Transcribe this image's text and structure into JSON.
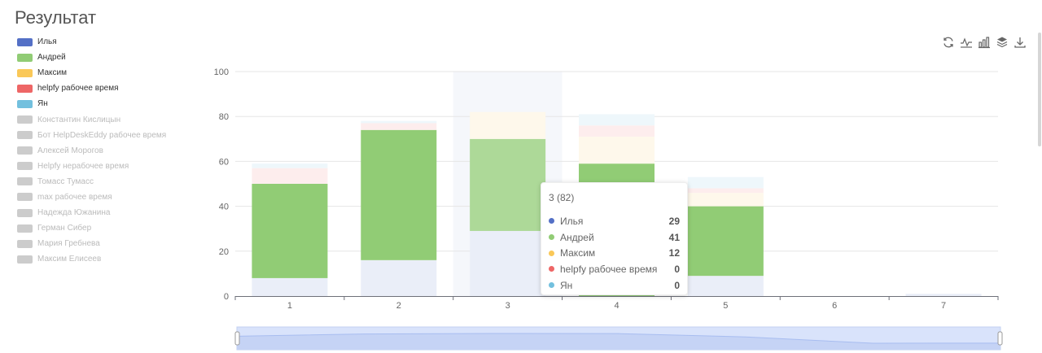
{
  "page": {
    "title": "Результат"
  },
  "colors": {
    "ilya": "#5470c6",
    "andrey": "#91cc75",
    "maksim": "#fac858",
    "helpfy": "#ee6666",
    "yan": "#73c0de",
    "inactive": "#cccccc"
  },
  "legend": [
    {
      "name": "Илья",
      "active": true,
      "color": "#5470c6"
    },
    {
      "name": "Андрей",
      "active": true,
      "color": "#91cc75"
    },
    {
      "name": "Максим",
      "active": true,
      "color": "#fac858"
    },
    {
      "name": "helpfy рабочее время",
      "active": true,
      "color": "#ee6666"
    },
    {
      "name": "Ян",
      "active": true,
      "color": "#73c0de"
    },
    {
      "name": "Константин Кислицын",
      "active": false,
      "color": "#cccccc"
    },
    {
      "name": "Бот HelpDeskEddy рабочее время",
      "active": false,
      "color": "#cccccc"
    },
    {
      "name": "Алексей Морогов",
      "active": false,
      "color": "#cccccc"
    },
    {
      "name": "Helpfy нерабочее время",
      "active": false,
      "color": "#cccccc"
    },
    {
      "name": "Томасс Тумасс",
      "active": false,
      "color": "#cccccc"
    },
    {
      "name": "max рабочее время",
      "active": false,
      "color": "#cccccc"
    },
    {
      "name": "Надежда Южанина",
      "active": false,
      "color": "#cccccc"
    },
    {
      "name": "Герман Сибер",
      "active": false,
      "color": "#cccccc"
    },
    {
      "name": "Мария Гребнева",
      "active": false,
      "color": "#cccccc"
    },
    {
      "name": "Максим Елисеев",
      "active": false,
      "color": "#cccccc"
    }
  ],
  "toolbox": [
    {
      "name": "restore-icon"
    },
    {
      "name": "line-chart-icon"
    },
    {
      "name": "bar-chart-icon"
    },
    {
      "name": "stack-icon"
    },
    {
      "name": "download-icon"
    }
  ],
  "chart_data": {
    "type": "bar",
    "stacked": true,
    "categories": [
      "1",
      "2",
      "3",
      "4",
      "5",
      "6",
      "7"
    ],
    "ylim": [
      0,
      100
    ],
    "yticks": [
      0,
      20,
      40,
      60,
      80,
      100
    ],
    "grid": true,
    "highlighted_category": "3",
    "emphasis_series": "Андрей",
    "series": [
      {
        "name": "Илья",
        "values": [
          8,
          16,
          29,
          0,
          9,
          0,
          1
        ]
      },
      {
        "name": "Андрей",
        "values": [
          42,
          58,
          41,
          59,
          31,
          0,
          0
        ]
      },
      {
        "name": "Максим",
        "values": [
          0,
          0,
          12,
          12,
          6,
          0,
          0
        ]
      },
      {
        "name": "helpfy рабочее время",
        "values": [
          7,
          3,
          0,
          5,
          2,
          0,
          0
        ]
      },
      {
        "name": "Ян",
        "values": [
          2,
          1,
          0,
          5,
          5,
          0,
          0
        ]
      }
    ],
    "dataZoom": {
      "start": 0,
      "end": 100
    }
  },
  "tooltip": {
    "title": "3 (82)",
    "rows": [
      {
        "name": "Илья",
        "value": "29",
        "color": "#5470c6"
      },
      {
        "name": "Андрей",
        "value": "41",
        "color": "#91cc75"
      },
      {
        "name": "Максим",
        "value": "12",
        "color": "#fac858"
      },
      {
        "name": "helpfy рабочее время",
        "value": "0",
        "color": "#ee6666"
      },
      {
        "name": "Ян",
        "value": "0",
        "color": "#73c0de"
      }
    ]
  }
}
